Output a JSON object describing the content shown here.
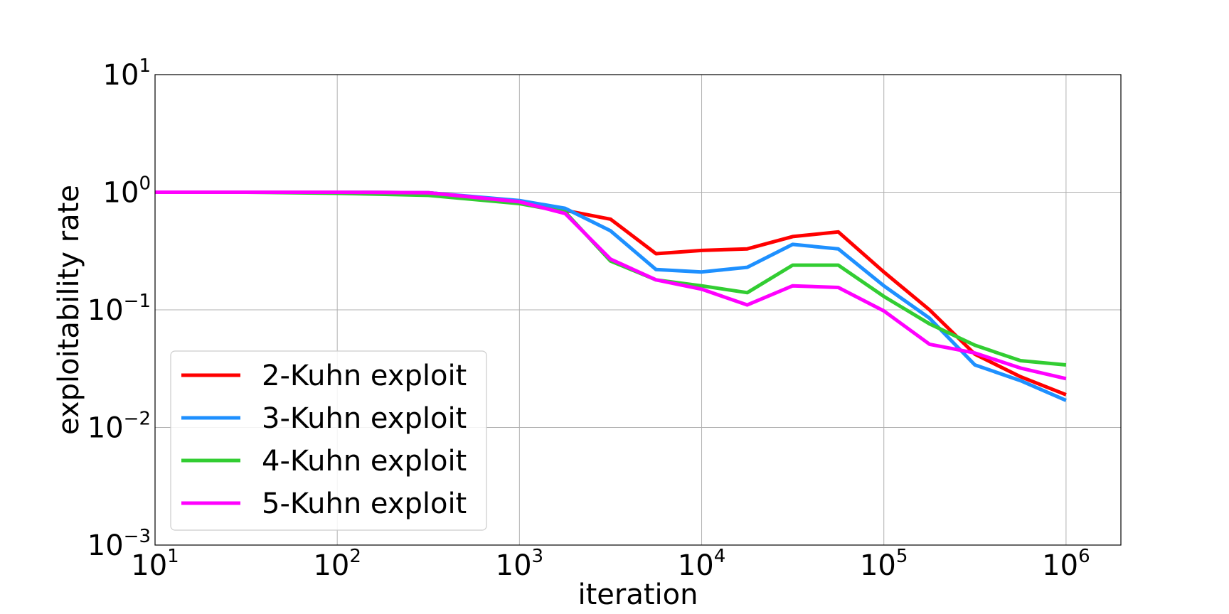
{
  "chart_data": {
    "type": "line",
    "xlabel": "iteration",
    "ylabel": "exploitability rate",
    "x_scale": "log",
    "y_scale": "log",
    "xlim": [
      10,
      2000000
    ],
    "ylim": [
      0.001,
      10
    ],
    "x_ticks": [
      {
        "base": "10",
        "exp": "1"
      },
      {
        "base": "10",
        "exp": "2"
      },
      {
        "base": "10",
        "exp": "3"
      },
      {
        "base": "10",
        "exp": "4"
      },
      {
        "base": "10",
        "exp": "5"
      },
      {
        "base": "10",
        "exp": "6"
      }
    ],
    "y_ticks": [
      {
        "base": "10",
        "exp": "1"
      },
      {
        "base": "10",
        "exp": "0"
      },
      {
        "base": "10",
        "exp": "−1"
      },
      {
        "base": "10",
        "exp": "−2"
      },
      {
        "base": "10",
        "exp": "−3"
      }
    ],
    "x_tick_values": [
      10,
      100,
      1000,
      10000,
      100000,
      1000000
    ],
    "y_tick_values": [
      10,
      1,
      0.1,
      0.01,
      0.001
    ],
    "grid": true,
    "legend_position": "lower-left",
    "x": [
      10,
      31.6,
      100,
      316,
      1000,
      1780,
      3160,
      5620,
      10000,
      17800,
      31600,
      56200,
      100000,
      178000,
      316000,
      562000,
      1000000
    ],
    "series": [
      {
        "name": "2-Kuhn exploit",
        "color": "#ff0000",
        "values": [
          1.0,
          1.0,
          1.0,
          0.99,
          0.83,
          0.7,
          0.59,
          0.3,
          0.32,
          0.33,
          0.42,
          0.46,
          0.21,
          0.1,
          0.042,
          0.027,
          0.019
        ]
      },
      {
        "name": "3-Kuhn exploit",
        "color": "#1e90ff",
        "values": [
          1.0,
          1.0,
          1.0,
          0.99,
          0.85,
          0.73,
          0.47,
          0.22,
          0.21,
          0.23,
          0.36,
          0.33,
          0.16,
          0.085,
          0.034,
          0.025,
          0.017
        ]
      },
      {
        "name": "4-Kuhn exploit",
        "color": "#32cd32",
        "values": [
          1.0,
          1.0,
          0.98,
          0.94,
          0.8,
          0.68,
          0.26,
          0.18,
          0.16,
          0.14,
          0.24,
          0.24,
          0.13,
          0.076,
          0.05,
          0.037,
          0.034
        ]
      },
      {
        "name": "5-Kuhn exploit",
        "color": "#ff00ff",
        "values": [
          1.0,
          1.0,
          1.0,
          0.99,
          0.83,
          0.66,
          0.27,
          0.18,
          0.15,
          0.11,
          0.16,
          0.155,
          0.098,
          0.051,
          0.043,
          0.032,
          0.026
        ]
      }
    ]
  }
}
